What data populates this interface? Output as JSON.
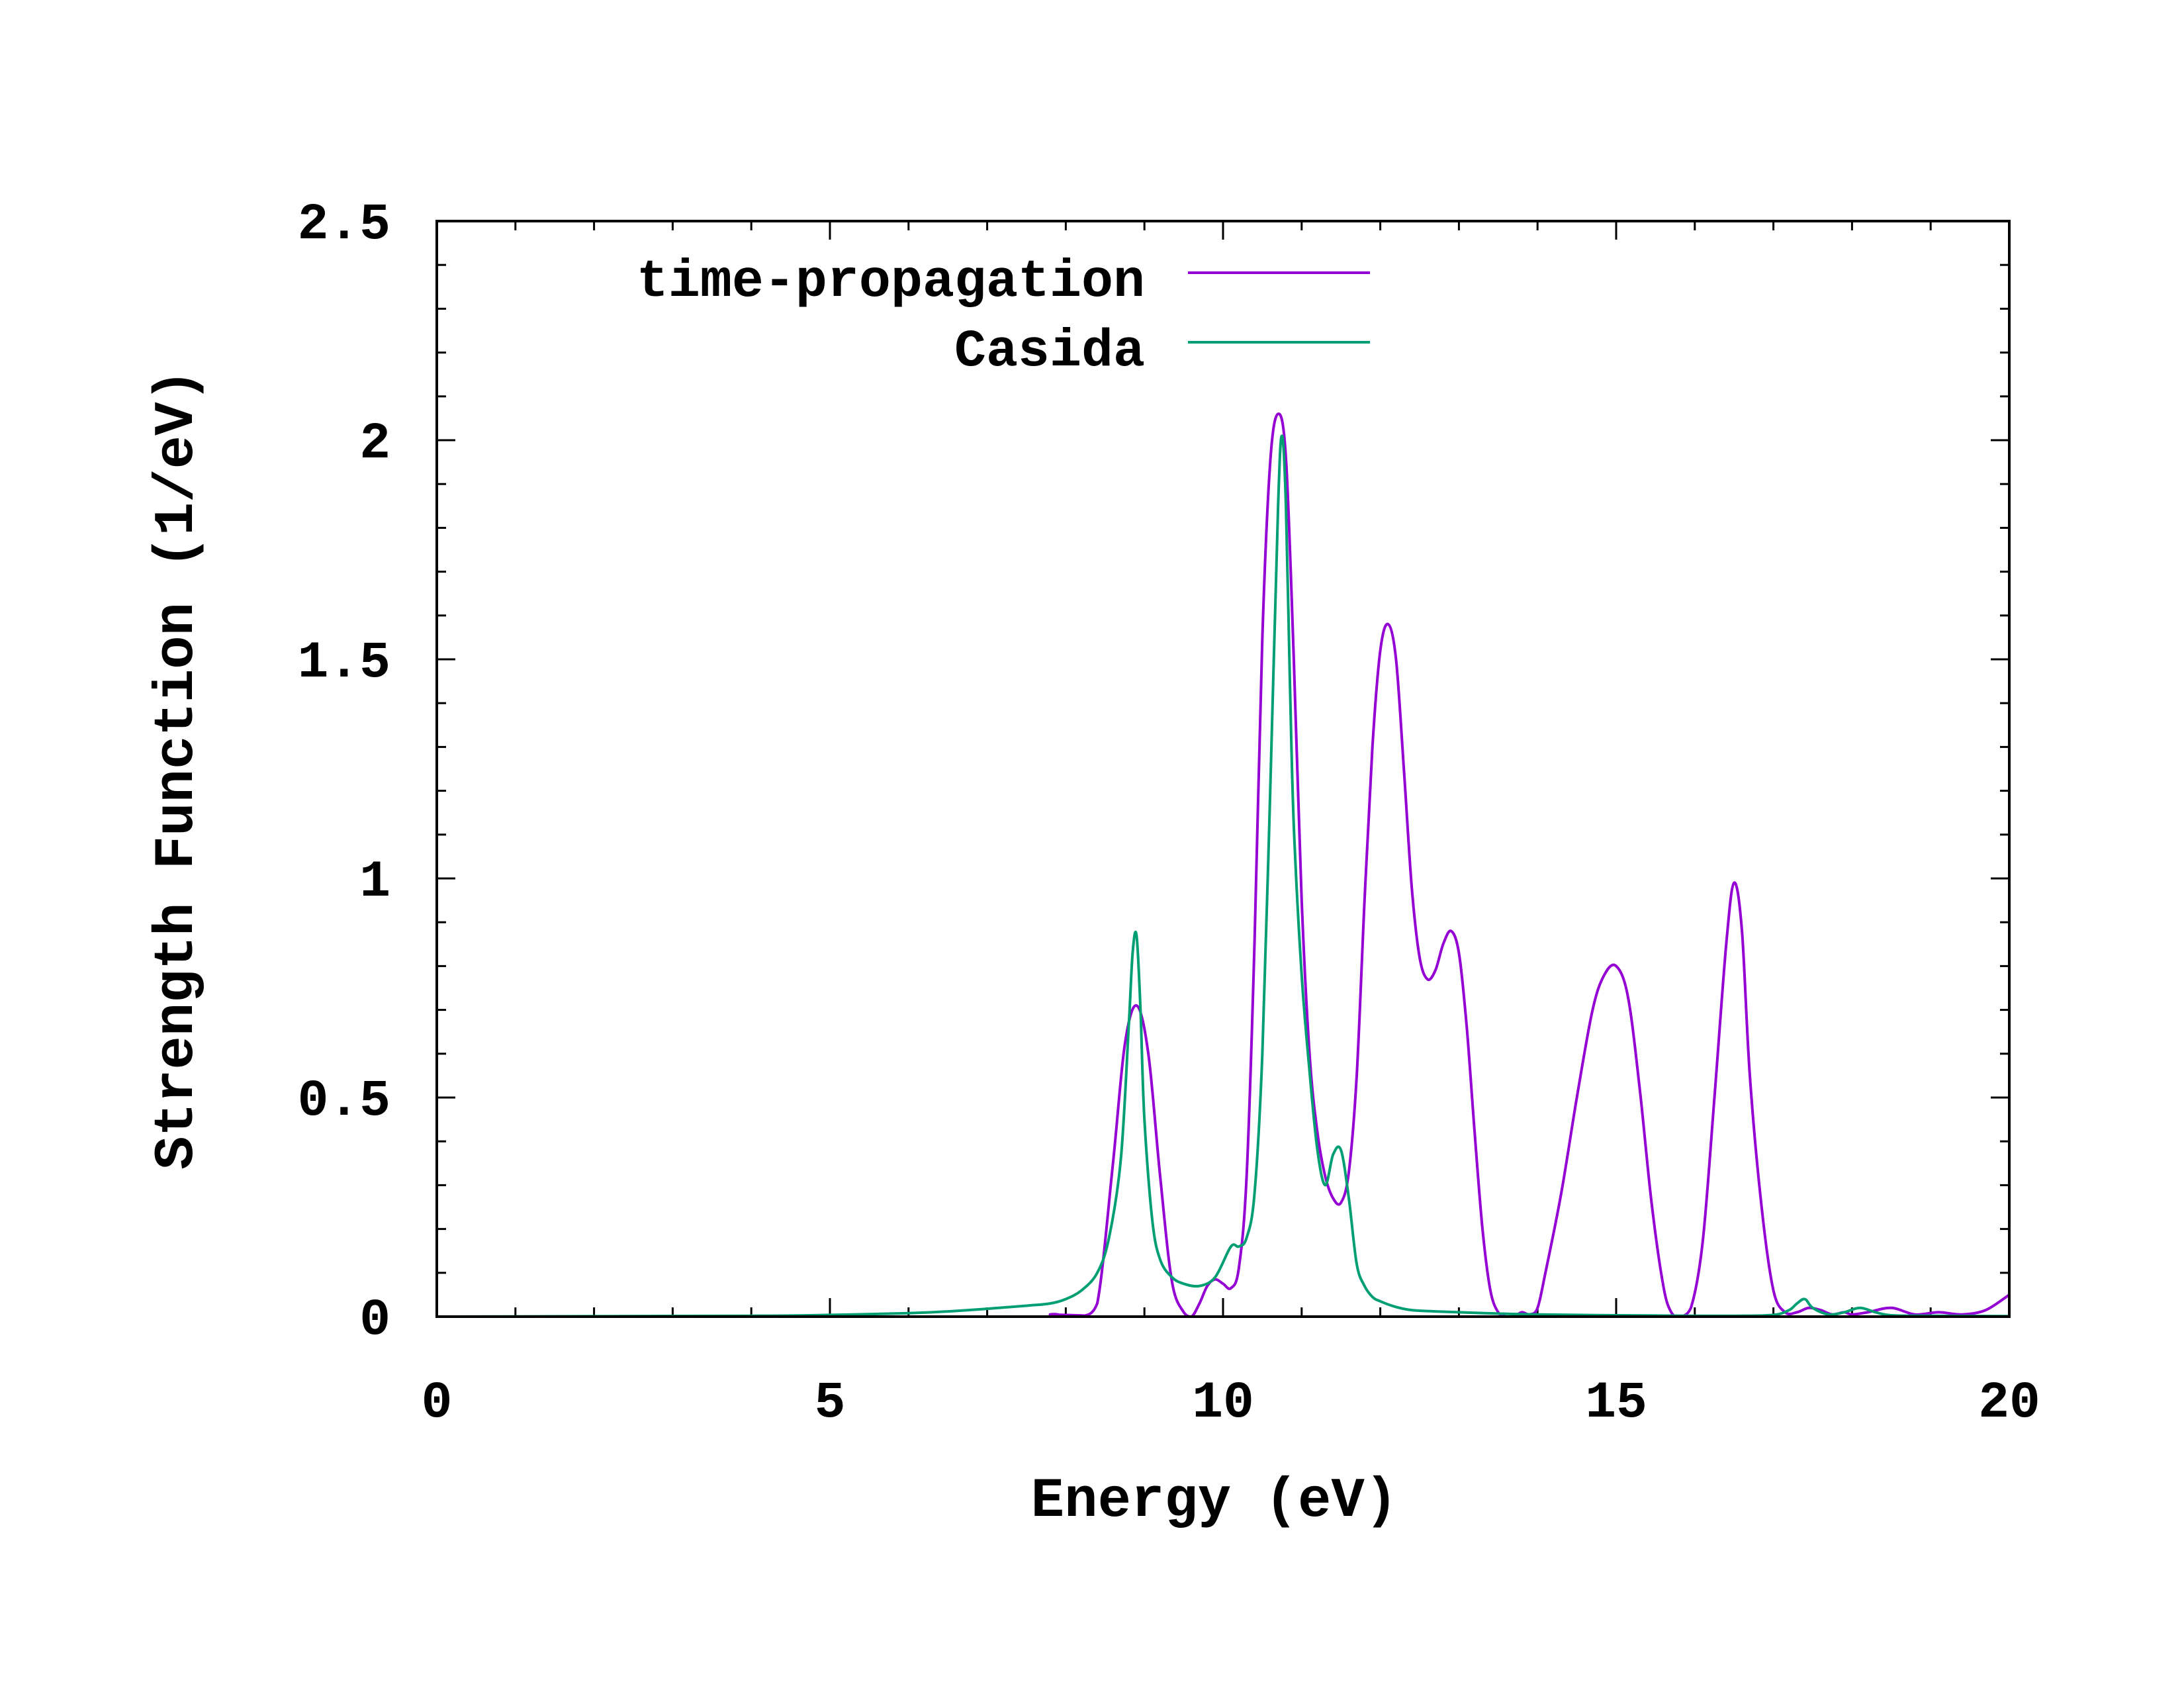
{
  "chart_data": {
    "type": "line",
    "title": "",
    "xlabel": "Energy (eV)",
    "ylabel": "Strength Function (1/eV)",
    "xlim": [
      0,
      20
    ],
    "ylim": [
      0,
      2.5
    ],
    "x_ticks": [
      0,
      5,
      10,
      15,
      20
    ],
    "x_tick_labels": [
      "0",
      "5",
      "10",
      "15",
      "20"
    ],
    "y_ticks": [
      0,
      0.5,
      1,
      1.5,
      2,
      2.5
    ],
    "y_tick_labels": [
      "0",
      "0.5",
      "1",
      "1.5",
      "2",
      "2.5"
    ],
    "grid": false,
    "legend_position": "top-left",
    "series": [
      {
        "name": "time-propagation",
        "color": "#9400d3",
        "x": [
          0,
          7.7,
          7.8,
          7.9,
          8.0,
          8.2,
          8.4,
          8.6,
          8.75,
          8.9,
          9.05,
          9.2,
          9.35,
          9.5,
          9.6,
          9.7,
          9.8,
          9.9,
          10.0,
          10.1,
          10.2,
          10.3,
          10.4,
          10.5,
          10.6,
          10.7,
          10.8,
          10.9,
          11.0,
          11.1,
          11.2,
          11.3,
          11.4,
          11.5,
          11.6,
          11.7,
          11.8,
          11.9,
          12.0,
          12.1,
          12.2,
          12.3,
          12.4,
          12.5,
          12.6,
          12.7,
          12.8,
          12.9,
          13.0,
          13.1,
          13.2,
          13.3,
          13.4,
          13.5,
          13.6,
          13.7,
          13.8,
          13.9,
          14.0,
          14.1,
          14.3,
          14.5,
          14.7,
          14.85,
          15.0,
          15.15,
          15.3,
          15.45,
          15.6,
          15.7,
          15.8,
          15.95,
          16.1,
          16.25,
          16.4,
          16.5,
          16.6,
          16.7,
          16.85,
          17.0,
          17.15,
          17.3,
          17.45,
          17.6,
          17.75,
          17.9,
          18.0,
          18.2,
          18.5,
          18.8,
          19.1,
          19.4,
          19.7,
          20.0
        ],
        "y": [
          0,
          0,
          0.005,
          0.005,
          0,
          0,
          0.03,
          0.35,
          0.62,
          0.71,
          0.6,
          0.32,
          0.08,
          0.01,
          0,
          0.03,
          0.07,
          0.085,
          0.075,
          0.065,
          0.11,
          0.32,
          0.85,
          1.55,
          1.95,
          2.06,
          1.96,
          1.5,
          0.95,
          0.6,
          0.42,
          0.32,
          0.27,
          0.26,
          0.33,
          0.55,
          0.95,
          1.3,
          1.52,
          1.58,
          1.5,
          1.25,
          0.98,
          0.82,
          0.77,
          0.79,
          0.85,
          0.88,
          0.83,
          0.66,
          0.42,
          0.2,
          0.06,
          0.01,
          0,
          0,
          0.01,
          0.005,
          0.02,
          0.1,
          0.28,
          0.5,
          0.7,
          0.78,
          0.8,
          0.73,
          0.52,
          0.26,
          0.07,
          0.01,
          0,
          0.02,
          0.17,
          0.5,
          0.85,
          0.99,
          0.88,
          0.55,
          0.25,
          0.06,
          0.01,
          0.01,
          0.02,
          0.015,
          0.005,
          0.01,
          0.005,
          0.01,
          0.02,
          0.005,
          0.01,
          0.005,
          0.015,
          0.05
        ]
      },
      {
        "name": "Casida",
        "color": "#009e73",
        "x": [
          0,
          4.0,
          5.0,
          6.0,
          6.5,
          7.0,
          7.5,
          7.8,
          8.0,
          8.2,
          8.4,
          8.55,
          8.7,
          8.8,
          8.85,
          8.9,
          8.95,
          9.0,
          9.1,
          9.2,
          9.35,
          9.5,
          9.7,
          9.9,
          10.1,
          10.2,
          10.3,
          10.4,
          10.5,
          10.6,
          10.7,
          10.75,
          10.8,
          10.85,
          10.9,
          11.0,
          11.1,
          11.2,
          11.3,
          11.4,
          11.5,
          11.6,
          11.7,
          11.8,
          11.9,
          12.0,
          12.2,
          12.4,
          12.7,
          13.0,
          13.5,
          14.0,
          15.0,
          16.0,
          16.5,
          17.0,
          17.2,
          17.3,
          17.4,
          17.5,
          17.7,
          17.9,
          18.1,
          18.3,
          18.5,
          19.0,
          20.0
        ],
        "y": [
          0,
          0.002,
          0.004,
          0.008,
          0.012,
          0.018,
          0.025,
          0.03,
          0.04,
          0.06,
          0.1,
          0.18,
          0.36,
          0.66,
          0.83,
          0.87,
          0.7,
          0.45,
          0.22,
          0.13,
          0.09,
          0.075,
          0.07,
          0.09,
          0.16,
          0.16,
          0.18,
          0.28,
          0.6,
          1.2,
          1.85,
          2.01,
          1.85,
          1.45,
          1.12,
          0.78,
          0.56,
          0.38,
          0.3,
          0.37,
          0.38,
          0.27,
          0.12,
          0.07,
          0.045,
          0.035,
          0.022,
          0.015,
          0.012,
          0.01,
          0.007,
          0.005,
          0.003,
          0.002,
          0.002,
          0.004,
          0.015,
          0.03,
          0.04,
          0.02,
          0.005,
          0.01,
          0.02,
          0.01,
          0.003,
          0.002,
          0.001
        ]
      }
    ]
  }
}
